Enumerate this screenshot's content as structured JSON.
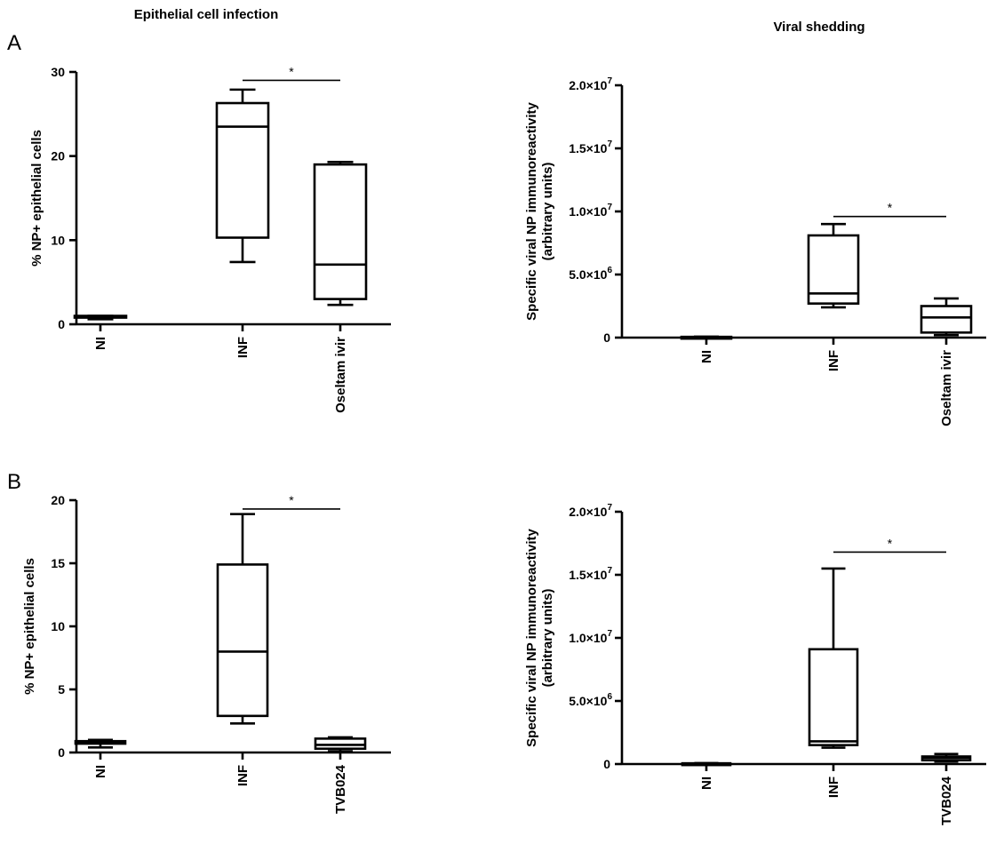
{
  "figure": {
    "column_titles": [
      "Epithelial cell infection",
      "Viral shedding"
    ],
    "panel_letters": [
      "A",
      "B"
    ]
  },
  "chart_data": [
    {
      "type": "box",
      "panel": "A",
      "title": "Epithelial cell infection",
      "xlabel": "",
      "ylabel": "% NP+ epithelial cells",
      "categories": [
        "NI",
        "INF",
        "Oseltam ivir"
      ],
      "ylim": [
        0,
        30
      ],
      "yticks": [
        0,
        10,
        20,
        30
      ],
      "ytick_labels": [
        "0",
        "10",
        "20",
        "30"
      ],
      "boxes": [
        {
          "min": 0.6,
          "q1": 0.8,
          "median": 0.9,
          "q3": 1.0,
          "max": 1.0
        },
        {
          "min": 7.4,
          "q1": 10.3,
          "median": 23.5,
          "q3": 26.3,
          "max": 27.9
        },
        {
          "min": 2.3,
          "q1": 3.0,
          "median": 7.1,
          "q3": 19.0,
          "max": 19.3
        }
      ],
      "significance": [
        {
          "from": 1,
          "to": 2,
          "y": 29,
          "label": "*"
        }
      ]
    },
    {
      "type": "box",
      "panel": "A",
      "title": "Viral shedding",
      "xlabel": "",
      "ylabel": [
        "Specific viral NP immunoreactivity",
        "(arbitrary units)"
      ],
      "categories": [
        "NI",
        "INF",
        "Oseltam ivir"
      ],
      "ylim": [
        0,
        20000000
      ],
      "yticks": [
        0,
        5000000,
        10000000,
        15000000,
        20000000
      ],
      "ytick_labels": [
        {
          "base": "0",
          "exp": ""
        },
        {
          "base": "5.0×10",
          "exp": "6"
        },
        {
          "base": "1.0×10",
          "exp": "7"
        },
        {
          "base": "1.5×10",
          "exp": "7"
        },
        {
          "base": "2.0×10",
          "exp": "7"
        }
      ],
      "boxes": [
        {
          "min": 0,
          "q1": 20000,
          "median": 40000,
          "q3": 60000,
          "max": 80000
        },
        {
          "min": 2400000,
          "q1": 2700000,
          "median": 3500000,
          "q3": 8100000,
          "max": 9000000
        },
        {
          "min": 200000,
          "q1": 400000,
          "median": 1600000,
          "q3": 2500000,
          "max": 3100000
        }
      ],
      "significance": [
        {
          "from": 1,
          "to": 2,
          "y": 9600000,
          "label": "*"
        }
      ]
    },
    {
      "type": "box",
      "panel": "B",
      "title": "",
      "xlabel": "",
      "ylabel": "% NP+ epithelial cells",
      "categories": [
        "NI",
        "INF",
        "TVB024"
      ],
      "ylim": [
        0,
        20
      ],
      "yticks": [
        0,
        5,
        10,
        15,
        20
      ],
      "ytick_labels": [
        "0",
        "5",
        "10",
        "15",
        "20"
      ],
      "boxes": [
        {
          "min": 0.4,
          "q1": 0.7,
          "median": 0.8,
          "q3": 0.9,
          "max": 1.0
        },
        {
          "min": 2.3,
          "q1": 2.9,
          "median": 8.0,
          "q3": 14.9,
          "max": 18.9
        },
        {
          "min": 0.1,
          "q1": 0.3,
          "median": 0.6,
          "q3": 1.1,
          "max": 1.2
        }
      ],
      "significance": [
        {
          "from": 1,
          "to": 2,
          "y": 19.3,
          "label": "*"
        }
      ]
    },
    {
      "type": "box",
      "panel": "B",
      "title": "",
      "xlabel": "",
      "ylabel": [
        "Specific viral NP immunoreactivity",
        "(arbitrary units)"
      ],
      "categories": [
        "NI",
        "INF",
        "TVB024"
      ],
      "ylim": [
        0,
        20000000
      ],
      "yticks": [
        0,
        5000000,
        10000000,
        15000000,
        20000000
      ],
      "ytick_labels": [
        {
          "base": "0",
          "exp": ""
        },
        {
          "base": "5.0×10",
          "exp": "6"
        },
        {
          "base": "1.0×10",
          "exp": "7"
        },
        {
          "base": "1.5×10",
          "exp": "7"
        },
        {
          "base": "2.0×10",
          "exp": "7"
        }
      ],
      "boxes": [
        {
          "min": 0,
          "q1": 20000,
          "median": 40000,
          "q3": 60000,
          "max": 80000
        },
        {
          "min": 1300000,
          "q1": 1500000,
          "median": 1800000,
          "q3": 9100000,
          "max": 15500000
        },
        {
          "min": 200000,
          "q1": 300000,
          "median": 500000,
          "q3": 600000,
          "max": 800000
        }
      ],
      "significance": [
        {
          "from": 1,
          "to": 2,
          "y": 16800000,
          "label": "*"
        }
      ]
    }
  ]
}
